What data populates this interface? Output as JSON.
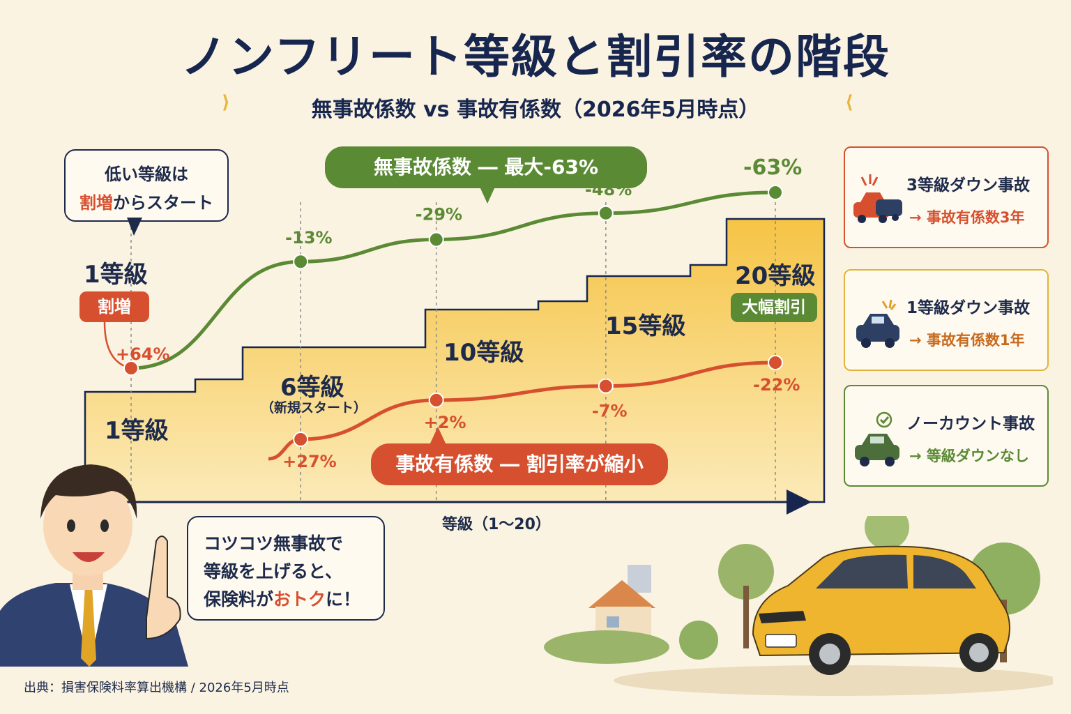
{
  "title": "ノンフリート等級と割引率の階段",
  "subtitle": "無事故係数 vs 事故有係数（2026年5月時点）",
  "bubble_top_left": {
    "line1": "低い等級は",
    "line2_emph": "割増",
    "line2_rest": "からスタート"
  },
  "pill_green": "無事故係数 ― 最大-63%",
  "pill_red": "事故有係数 ― 割引率が縮小",
  "grade_labels": {
    "g1_top": "1等級",
    "g1_badge": "割増",
    "g1_step": "1等級",
    "g6": "6等級",
    "g6_sub": "（新規スタート）",
    "g10": "10等級",
    "g15": "15等級",
    "g20": "20等級",
    "g20_badge": "大幅割引"
  },
  "x_axis_label": "等級（1〜20）",
  "chart_data": {
    "type": "line",
    "title": "ノンフリート等級と割引率の階段",
    "xlabel": "等級（1〜20）",
    "x": [
      1,
      6,
      10,
      15,
      20
    ],
    "series": [
      {
        "name": "無事故係数",
        "values": [
          64,
          -13,
          -29,
          -48,
          -63
        ],
        "labels": [
          "+64%",
          "-13%",
          "-29%",
          "-48%",
          "-63%"
        ],
        "color": "#5b8a35"
      },
      {
        "name": "事故有係数",
        "values": [
          27,
          2,
          -7,
          -22
        ],
        "x": [
          6,
          10,
          15,
          20
        ],
        "labels": [
          "+27%",
          "+2%",
          "-7%",
          "-22%"
        ],
        "color": "#d6502f"
      }
    ]
  },
  "cards": [
    {
      "line1": "3等級ダウン事故",
      "line2": "→ 事故有係数3年",
      "color": "#d6502f",
      "accent": "#d6502f",
      "icon": "crashed-car-icon"
    },
    {
      "line1": "1等級ダウン事故",
      "line2": "→ 事故有係数1年",
      "color": "#e0b43a",
      "accent": "#c76a1e",
      "icon": "bumped-car-icon"
    },
    {
      "line1": "ノーカウント事故",
      "line2": "→ 等級ダウンなし",
      "color": "#5b8a35",
      "accent": "#5b8a35",
      "icon": "check-car-icon"
    }
  ],
  "speech": {
    "line1": "コツコツ無事故で",
    "line2": "等級を上げると、",
    "line3a": "保険料が",
    "line3b": "おトク",
    "line3c": "に！"
  },
  "source": "出典：損害保険料率算出機構 / 2026年5月時点",
  "colors": {
    "green": "#5b8a35",
    "red": "#d6502f",
    "navy": "#17264f",
    "staircase": "#f6c94f"
  }
}
